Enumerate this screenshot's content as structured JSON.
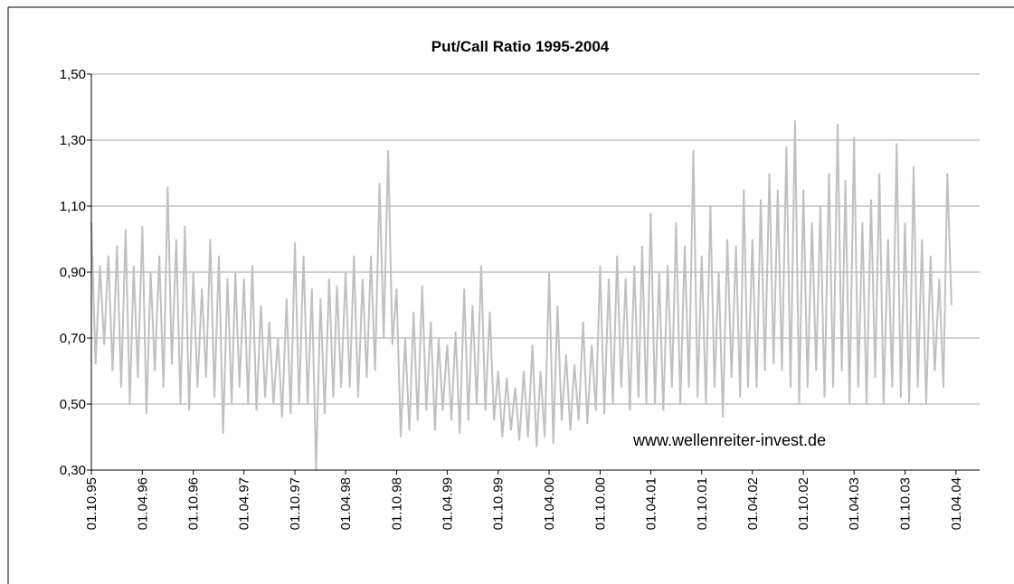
{
  "chart_data": {
    "type": "line",
    "title": "Put/Call Ratio 1995-2004",
    "annotation": "www.wellenreiter-invest.de",
    "color": "#c0c0c0",
    "grid": true,
    "x": [
      "01.10.95",
      "16.10.95",
      "01.11.95",
      "16.11.95",
      "01.12.95",
      "16.12.95",
      "01.01.96",
      "16.01.96",
      "01.02.96",
      "16.02.96",
      "01.03.96",
      "16.03.96",
      "01.04.96",
      "16.04.96",
      "01.05.96",
      "16.05.96",
      "01.06.96",
      "16.06.96",
      "01.07.96",
      "16.07.96",
      "01.08.96",
      "16.08.96",
      "01.09.96",
      "16.09.96",
      "01.10.96",
      "16.10.96",
      "01.11.96",
      "16.11.96",
      "01.12.96",
      "16.12.96",
      "01.01.97",
      "16.01.97",
      "01.02.97",
      "16.02.97",
      "01.03.97",
      "16.03.97",
      "01.04.97",
      "16.04.97",
      "01.05.97",
      "16.05.97",
      "01.06.97",
      "16.06.97",
      "01.07.97",
      "16.07.97",
      "01.08.97",
      "16.08.97",
      "01.09.97",
      "16.09.97",
      "01.10.97",
      "16.10.97",
      "01.11.97",
      "16.11.97",
      "01.12.97",
      "16.12.97",
      "01.01.98",
      "16.01.98",
      "01.02.98",
      "16.02.98",
      "01.03.98",
      "16.03.98",
      "01.04.98",
      "16.04.98",
      "01.05.98",
      "16.05.98",
      "01.06.98",
      "16.06.98",
      "01.07.98",
      "16.07.98",
      "01.08.98",
      "16.08.98",
      "01.09.98",
      "16.09.98",
      "01.10.98",
      "16.10.98",
      "01.11.98",
      "16.11.98",
      "01.12.98",
      "16.12.98",
      "01.01.99",
      "16.01.99",
      "01.02.99",
      "16.02.99",
      "01.03.99",
      "16.03.99",
      "01.04.99",
      "16.04.99",
      "01.05.99",
      "16.05.99",
      "01.06.99",
      "16.06.99",
      "01.07.99",
      "16.07.99",
      "01.08.99",
      "16.08.99",
      "01.09.99",
      "16.09.99",
      "01.10.99",
      "16.10.99",
      "01.11.99",
      "16.11.99",
      "01.12.99",
      "16.12.99",
      "01.01.00",
      "16.01.00",
      "01.02.00",
      "16.02.00",
      "01.03.00",
      "16.03.00",
      "01.04.00",
      "16.04.00",
      "01.05.00",
      "16.05.00",
      "01.06.00",
      "16.06.00",
      "01.07.00",
      "16.07.00",
      "01.08.00",
      "16.08.00",
      "01.09.00",
      "16.09.00",
      "01.10.00",
      "16.10.00",
      "01.11.00",
      "16.11.00",
      "01.12.00",
      "16.12.00",
      "01.01.01",
      "16.01.01",
      "01.02.01",
      "16.02.01",
      "01.03.01",
      "16.03.01",
      "01.04.01",
      "16.04.01",
      "01.05.01",
      "16.05.01",
      "01.06.01",
      "16.06.01",
      "01.07.01",
      "16.07.01",
      "01.08.01",
      "16.08.01",
      "01.09.01",
      "16.09.01",
      "01.10.01",
      "16.10.01",
      "01.11.01",
      "16.11.01",
      "01.12.01",
      "16.12.01",
      "01.01.02",
      "16.01.02",
      "01.02.02",
      "16.02.02",
      "01.03.02",
      "16.03.02",
      "01.04.02",
      "16.04.02",
      "01.05.02",
      "16.05.02",
      "01.06.02",
      "16.06.02",
      "01.07.02",
      "16.07.02",
      "01.08.02",
      "16.08.02",
      "01.09.02",
      "16.09.02",
      "01.10.02",
      "16.10.02",
      "01.11.02",
      "16.11.02",
      "01.12.02",
      "16.12.02",
      "01.01.03",
      "16.01.03",
      "01.02.03",
      "16.02.03",
      "01.03.03",
      "16.03.03",
      "01.04.03",
      "16.04.03",
      "01.05.03",
      "16.05.03",
      "01.06.03",
      "16.06.03",
      "01.07.03",
      "16.07.03",
      "01.08.03",
      "16.08.03",
      "01.09.03",
      "16.09.03",
      "01.10.03",
      "16.10.03",
      "01.11.03",
      "16.11.03",
      "01.12.03",
      "16.12.03",
      "01.01.04",
      "16.01.04",
      "01.02.04",
      "16.02.04",
      "01.03.04",
      "16.03.04"
    ],
    "values": [
      1.05,
      0.62,
      0.92,
      0.68,
      0.95,
      0.6,
      0.98,
      0.55,
      1.03,
      0.5,
      0.92,
      0.58,
      1.04,
      0.47,
      0.9,
      0.6,
      0.95,
      0.55,
      1.16,
      0.62,
      1.0,
      0.5,
      1.04,
      0.48,
      0.9,
      0.55,
      0.85,
      0.58,
      1.0,
      0.52,
      0.95,
      0.41,
      0.88,
      0.5,
      0.9,
      0.55,
      0.88,
      0.5,
      0.92,
      0.48,
      0.8,
      0.52,
      0.75,
      0.5,
      0.7,
      0.46,
      0.82,
      0.47,
      0.99,
      0.5,
      0.95,
      0.5,
      0.85,
      0.3,
      0.82,
      0.47,
      0.88,
      0.52,
      0.86,
      0.55,
      0.9,
      0.55,
      0.95,
      0.52,
      0.88,
      0.58,
      0.95,
      0.6,
      1.17,
      0.7,
      1.27,
      0.68,
      0.85,
      0.4,
      0.7,
      0.42,
      0.78,
      0.45,
      0.86,
      0.48,
      0.75,
      0.42,
      0.7,
      0.48,
      0.68,
      0.45,
      0.72,
      0.41,
      0.85,
      0.45,
      0.8,
      0.5,
      0.92,
      0.48,
      0.78,
      0.45,
      0.6,
      0.4,
      0.58,
      0.42,
      0.55,
      0.39,
      0.6,
      0.4,
      0.68,
      0.37,
      0.6,
      0.4,
      0.9,
      0.38,
      0.8,
      0.45,
      0.65,
      0.42,
      0.62,
      0.45,
      0.75,
      0.44,
      0.68,
      0.48,
      0.92,
      0.47,
      0.88,
      0.5,
      0.95,
      0.55,
      0.88,
      0.48,
      0.92,
      0.52,
      0.98,
      0.5,
      1.08,
      0.5,
      0.9,
      0.48,
      0.92,
      0.55,
      1.05,
      0.5,
      0.98,
      0.55,
      1.27,
      0.52,
      0.95,
      0.5,
      1.1,
      0.55,
      0.9,
      0.46,
      1.0,
      0.58,
      0.98,
      0.52,
      1.15,
      0.55,
      1.0,
      0.55,
      1.12,
      0.6,
      1.2,
      0.62,
      1.15,
      0.6,
      1.28,
      0.55,
      1.36,
      0.5,
      1.15,
      0.55,
      1.05,
      0.6,
      1.1,
      0.52,
      1.2,
      0.55,
      1.35,
      0.6,
      1.18,
      0.5,
      1.31,
      0.55,
      1.05,
      0.5,
      1.12,
      0.58,
      1.2,
      0.5,
      1.0,
      0.55,
      1.29,
      0.52,
      1.05,
      0.5,
      1.22,
      0.55,
      1.0,
      0.5,
      0.95,
      0.6,
      0.88,
      0.55,
      1.2,
      0.8
    ],
    "xlim": [
      "01.10.95",
      "25.06.04"
    ],
    "xticks": [
      "01.10.95",
      "01.04.96",
      "01.10.96",
      "01.04.97",
      "01.10.97",
      "01.04.98",
      "01.10.98",
      "01.04.99",
      "01.10.99",
      "01.04.00",
      "01.10.00",
      "01.04.01",
      "01.10.01",
      "01.04.02",
      "01.10.02",
      "01.04.03",
      "01.10.03",
      "01.04.04"
    ],
    "ylim": [
      0.3,
      1.5
    ],
    "yticks": [
      {
        "value": 0.3,
        "label": "0,30"
      },
      {
        "value": 0.5,
        "label": "0,50"
      },
      {
        "value": 0.7,
        "label": "0,70"
      },
      {
        "value": 0.9,
        "label": "0,90"
      },
      {
        "value": 1.1,
        "label": "1,10"
      },
      {
        "value": 1.3,
        "label": "1,30"
      },
      {
        "value": 1.5,
        "label": "1,50"
      }
    ]
  }
}
